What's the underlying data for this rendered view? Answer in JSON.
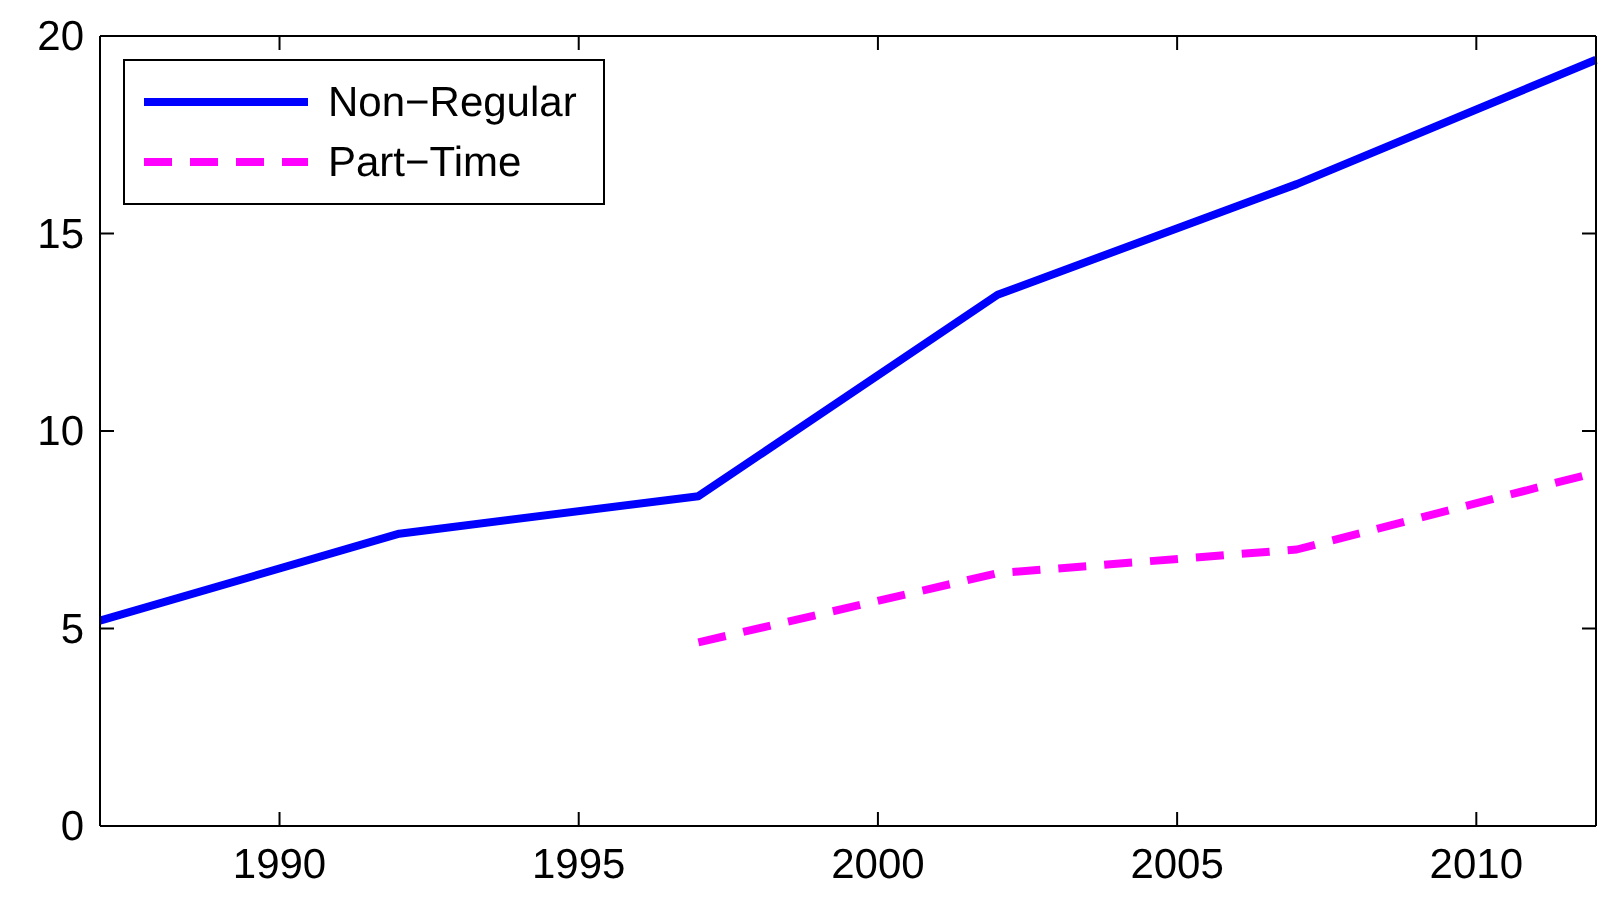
{
  "chart_data": {
    "type": "line",
    "x": [
      1987,
      1992,
      1997,
      2002,
      2007,
      2012
    ],
    "series": [
      {
        "name": "Non−Regular",
        "color": "#0000ff",
        "line_style": "solid",
        "values": [
          5.2,
          7.4,
          8.35,
          13.45,
          16.25,
          19.4
        ]
      },
      {
        "name": "Part−Time",
        "color": "#ff00ff",
        "line_style": "dashed",
        "values": [
          null,
          null,
          4.65,
          6.4,
          7.0,
          8.95
        ]
      }
    ],
    "xlim": [
      1987,
      2012
    ],
    "xticks": [
      1990,
      1995,
      2000,
      2005,
      2010
    ],
    "ylim": [
      0,
      20
    ],
    "yticks": [
      0,
      5,
      10,
      15,
      20
    ],
    "grid": false,
    "legend": "top left",
    "marker": "none"
  }
}
